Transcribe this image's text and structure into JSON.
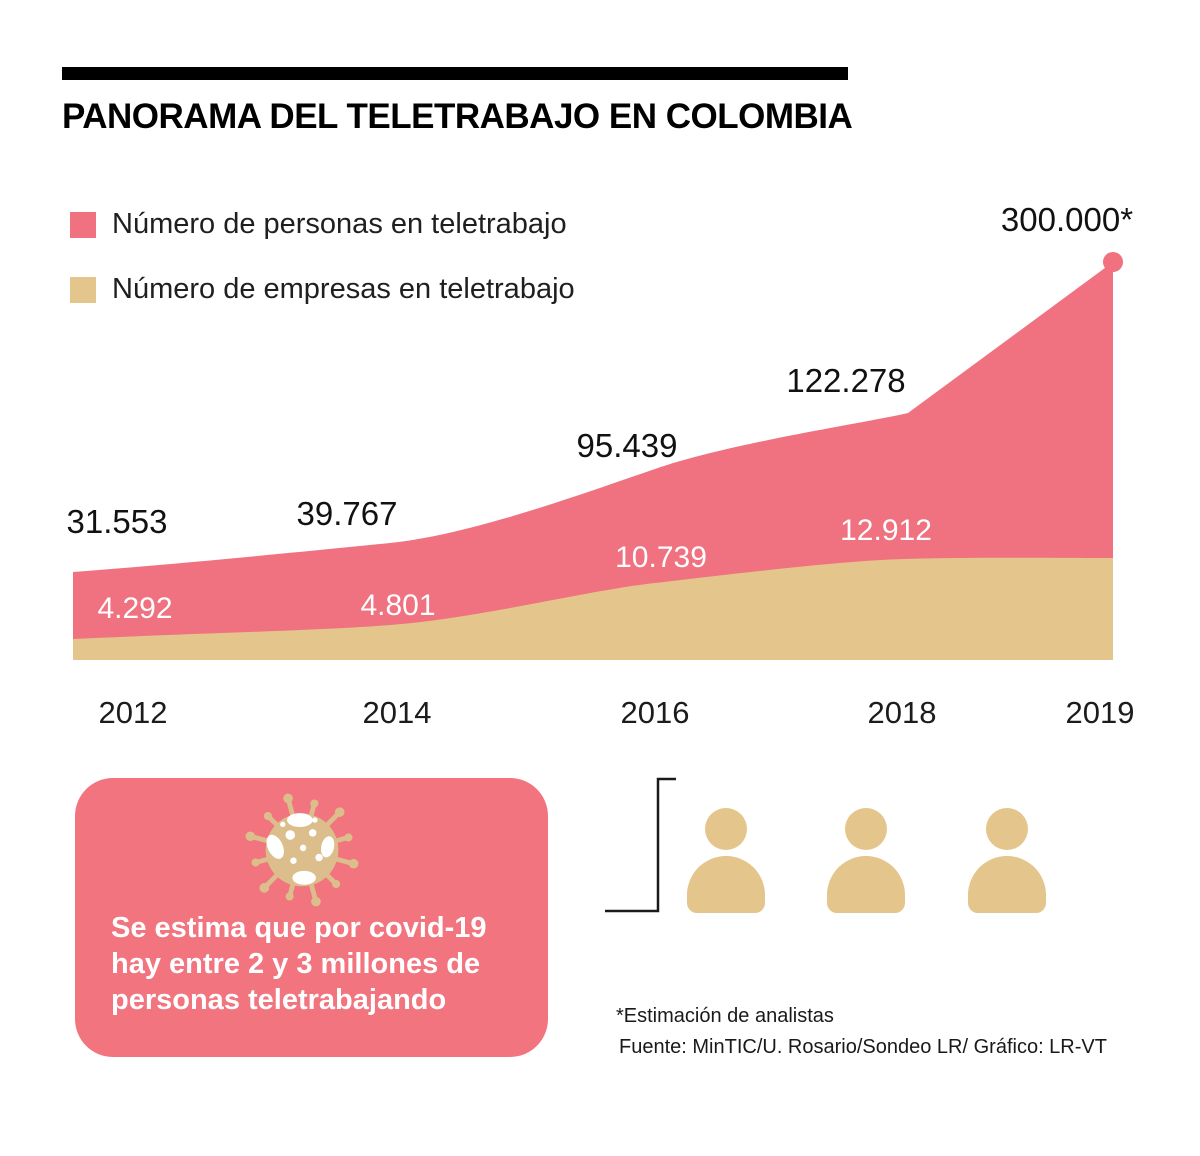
{
  "title": "PANORAMA DEL TELETRABAJO EN COLOMBIA",
  "colors": {
    "personas": "#F0717F",
    "empresas": "#E4C58B",
    "callout_bg": "#F1747F",
    "virus": "#DCBE8C",
    "bracket": "#1a1a1a"
  },
  "legend": {
    "items": [
      {
        "label": "Número de personas en teletrabajo",
        "color": "#F0717F"
      },
      {
        "label": "Número de empresas en teletrabajo",
        "color": "#E4C58B"
      }
    ]
  },
  "chart_data": {
    "type": "area",
    "categories": [
      "2012",
      "2014",
      "2016",
      "2018",
      "2019"
    ],
    "series": [
      {
        "name": "Número de personas en teletrabajo",
        "color": "#F0717F",
        "values": [
          31553,
          39767,
          95439,
          122278,
          300000
        ],
        "labels": [
          "31.553",
          "39.767",
          "95.439",
          "122.278",
          "300.000*"
        ]
      },
      {
        "name": "Número de empresas en teletrabajo",
        "color": "#E4C58B",
        "values": [
          4292,
          4801,
          10739,
          12912,
          null
        ],
        "labels": [
          "4.292",
          "4.801",
          "10.739",
          "12.912"
        ]
      }
    ],
    "ylim": [
      0,
      300000
    ],
    "grid": false,
    "legend_position": "top-left",
    "last_point_marker": "dot"
  },
  "callout": {
    "lines": [
      "Se estima que por covid-19",
      "hay entre 2 y 3 millones de",
      "personas teletrabajando"
    ]
  },
  "footnote": {
    "estimation": "*Estimación de analistas",
    "source": "Fuente: MinTIC/U. Rosario/Sondeo LR/ Gráfico: LR-VT"
  }
}
